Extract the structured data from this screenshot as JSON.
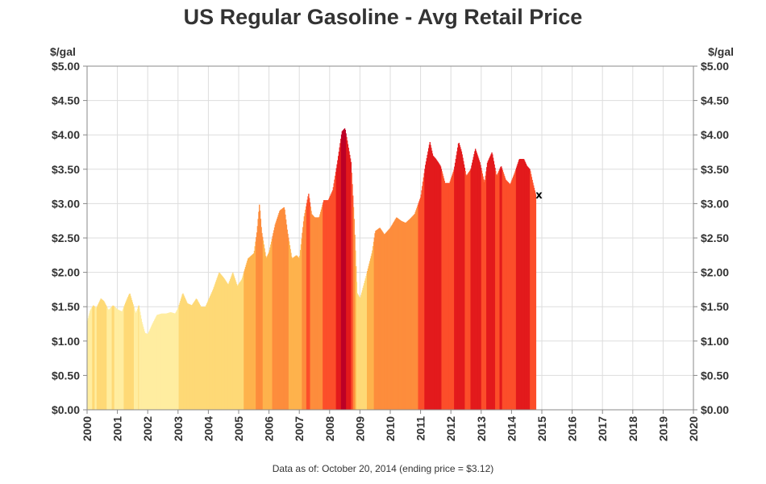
{
  "title": "US Regular Gasoline - Avg Retail Price",
  "footnote": "Data as of: October 20, 2014  (ending price = $3.12)",
  "end_marker": "x",
  "chart_data": {
    "type": "area",
    "y_unit_label": "$/gal",
    "xlim": [
      2000,
      2020
    ],
    "ylim": [
      0,
      5
    ],
    "grid": true,
    "x_ticks": [
      "2000",
      "2001",
      "2002",
      "2003",
      "2004",
      "2005",
      "2006",
      "2007",
      "2008",
      "2009",
      "2010",
      "2011",
      "2012",
      "2013",
      "2014",
      "2015",
      "2016",
      "2017",
      "2018",
      "2019",
      "2020"
    ],
    "y_ticks": [
      "$0.00",
      "$0.50",
      "$1.00",
      "$1.50",
      "$2.00",
      "$2.50",
      "$3.00",
      "$3.50",
      "$4.00",
      "$4.50",
      "$5.00"
    ],
    "x": [
      2000.0,
      2000.1,
      2000.2,
      2000.3,
      2000.45,
      2000.55,
      2000.7,
      2000.85,
      2001.0,
      2001.15,
      2001.3,
      2001.4,
      2001.5,
      2001.6,
      2001.7,
      2001.8,
      2001.9,
      2002.0,
      2002.15,
      2002.3,
      2002.45,
      2002.6,
      2002.75,
      2002.9,
      2003.0,
      2003.15,
      2003.3,
      2003.45,
      2003.6,
      2003.75,
      2003.9,
      2004.0,
      2004.15,
      2004.35,
      2004.5,
      2004.65,
      2004.8,
      2004.95,
      2005.1,
      2005.3,
      2005.5,
      2005.6,
      2005.68,
      2005.75,
      2005.9,
      2006.0,
      2006.2,
      2006.35,
      2006.5,
      2006.6,
      2006.75,
      2006.9,
      2007.0,
      2007.15,
      2007.3,
      2007.4,
      2007.5,
      2007.65,
      2007.8,
      2007.95,
      2008.1,
      2008.25,
      2008.4,
      2008.5,
      2008.6,
      2008.7,
      2008.8,
      2008.9,
      2009.0,
      2009.2,
      2009.4,
      2009.5,
      2009.65,
      2009.8,
      2010.0,
      2010.2,
      2010.35,
      2010.5,
      2010.65,
      2010.8,
      2011.0,
      2011.15,
      2011.3,
      2011.4,
      2011.5,
      2011.65,
      2011.8,
      2011.95,
      2012.1,
      2012.25,
      2012.35,
      2012.5,
      2012.65,
      2012.8,
      2012.95,
      2013.1,
      2013.2,
      2013.35,
      2013.5,
      2013.65,
      2013.8,
      2013.95,
      2014.1,
      2014.25,
      2014.4,
      2014.5,
      2014.6,
      2014.7,
      2014.8
    ],
    "values": [
      1.28,
      1.45,
      1.52,
      1.48,
      1.62,
      1.58,
      1.45,
      1.52,
      1.46,
      1.43,
      1.6,
      1.7,
      1.55,
      1.4,
      1.52,
      1.28,
      1.12,
      1.1,
      1.25,
      1.38,
      1.4,
      1.4,
      1.42,
      1.4,
      1.48,
      1.7,
      1.55,
      1.52,
      1.62,
      1.5,
      1.5,
      1.6,
      1.75,
      2.0,
      1.92,
      1.82,
      2.0,
      1.8,
      1.9,
      2.2,
      2.28,
      2.6,
      3.0,
      2.6,
      2.2,
      2.3,
      2.7,
      2.9,
      2.95,
      2.6,
      2.2,
      2.25,
      2.2,
      2.8,
      3.15,
      2.85,
      2.8,
      2.8,
      3.05,
      3.05,
      3.2,
      3.6,
      4.05,
      4.1,
      3.85,
      3.6,
      2.8,
      1.7,
      1.62,
      1.95,
      2.3,
      2.6,
      2.65,
      2.55,
      2.65,
      2.8,
      2.75,
      2.72,
      2.78,
      2.85,
      3.1,
      3.55,
      3.9,
      3.7,
      3.65,
      3.55,
      3.3,
      3.3,
      3.5,
      3.9,
      3.75,
      3.4,
      3.5,
      3.8,
      3.6,
      3.3,
      3.6,
      3.75,
      3.4,
      3.55,
      3.35,
      3.28,
      3.45,
      3.65,
      3.65,
      3.55,
      3.5,
      3.3,
      3.12
    ],
    "color_scale": {
      "type": "price-band",
      "colors": [
        "#ffeda0",
        "#fed976",
        "#feb24c",
        "#fd8d3c",
        "#fc4e2a",
        "#e31a1c",
        "#bd0026"
      ],
      "thresholds": [
        1.5,
        2.0,
        2.5,
        3.0,
        3.5,
        4.0
      ]
    }
  }
}
